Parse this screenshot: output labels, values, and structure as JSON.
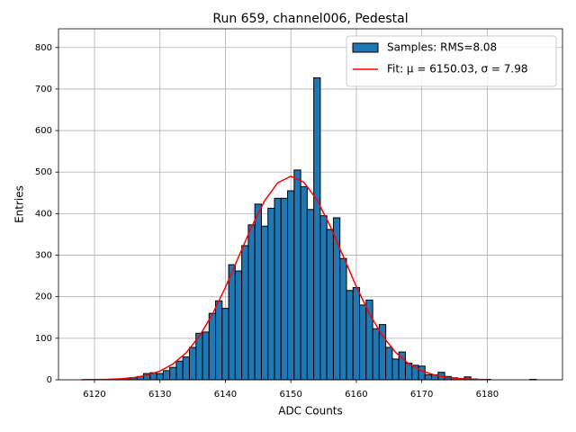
{
  "chart_data": {
    "type": "histogram",
    "title": "Run 659, channel006, Pedestal",
    "x_label": "ADC Counts",
    "y_label": "Entries",
    "bins": [
      6117.5,
      6118.5,
      6119.5,
      6120.5,
      6121.5,
      6122.5,
      6123.5,
      6124.5,
      6125.5,
      6126.5,
      6127.5,
      6128.5,
      6129.5,
      6130.5,
      6131.5,
      6132.5,
      6133.5,
      6134.5,
      6135.5,
      6136.5,
      6137.5,
      6138.5,
      6139.5,
      6140.5,
      6141.5,
      6142.5,
      6143.5,
      6144.5,
      6145.5,
      6146.5,
      6147.5,
      6148.5,
      6149.5,
      6150.5,
      6151.5,
      6152.5,
      6153.5,
      6154.5,
      6155.5,
      6156.5,
      6157.5,
      6158.5,
      6159.5,
      6160.5,
      6161.5,
      6162.5,
      6163.5,
      6164.5,
      6165.5,
      6166.5,
      6167.5,
      6168.5,
      6169.5,
      6170.5,
      6171.5,
      6172.5,
      6173.5,
      6174.5,
      6175.5,
      6176.5,
      6177.5,
      6178.5,
      6179.5,
      6180.5,
      6181.5,
      6182.5,
      6183.5,
      6184.5,
      6185.5,
      6186.5,
      6187.5
    ],
    "series": [
      {
        "name": "Samples: RMS=8.08",
        "type": "histogram",
        "color": "#1f77b4",
        "edgecolor": "#000000",
        "values": [
          0,
          0,
          0,
          0,
          1,
          1,
          2,
          3,
          5,
          8,
          15,
          17,
          15,
          22,
          30,
          45,
          55,
          78,
          112,
          115,
          160,
          190,
          172,
          277,
          262,
          323,
          373,
          423,
          370,
          413,
          437,
          437,
          455,
          505,
          465,
          410,
          727,
          395,
          362,
          390,
          292,
          215,
          222,
          180,
          192,
          123,
          133,
          78,
          50,
          67,
          40,
          35,
          33,
          12,
          12,
          18,
          8,
          5,
          3,
          7,
          2,
          1,
          1,
          0,
          0,
          0,
          0,
          0,
          0,
          1
        ]
      },
      {
        "name": "Fit: μ = 6150.03, σ = 7.98",
        "type": "line",
        "color": "#ff0000",
        "x": [
          6118,
          6120,
          6122,
          6124,
          6126,
          6128,
          6130,
          6132,
          6134,
          6136,
          6138,
          6140,
          6142,
          6144,
          6146,
          6148,
          6150,
          6152,
          6154,
          6156,
          6158,
          6160,
          6162,
          6164,
          6166,
          6168,
          6170,
          6172,
          6174,
          6176,
          6178,
          6180
        ],
        "values": [
          0.16,
          0.41,
          1.0,
          2.4,
          5.3,
          10.8,
          21.0,
          38.2,
          65.1,
          104.5,
          157.3,
          222.4,
          295.4,
          368.3,
          431.3,
          474.4,
          490.0,
          475.3,
          433.0,
          370.4,
          297.6,
          224.5,
          159.1,
          105.8,
          66.2,
          38.8,
          21.4,
          11.1,
          5.4,
          2.5,
          1.1,
          0.42
        ]
      }
    ],
    "xlim": [
      6114.5,
      6191.5
    ],
    "ylim": [
      0,
      845
    ],
    "xticks": [
      6120,
      6130,
      6140,
      6150,
      6160,
      6170,
      6180
    ],
    "yticks": [
      0,
      100,
      200,
      300,
      400,
      500,
      600,
      700,
      800
    ],
    "grid": true,
    "legend": "upper right"
  }
}
